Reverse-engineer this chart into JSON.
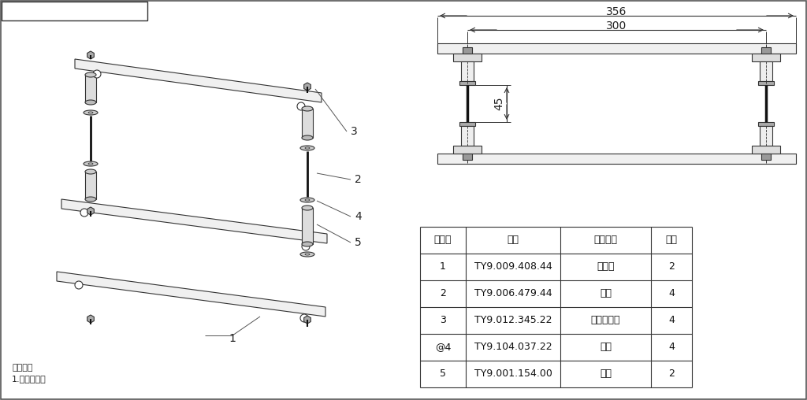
{
  "bg_color": "#ffffff",
  "line_color": "#333333",
  "table_header": [
    "项目号",
    "图号",
    "图样名称",
    "数量"
  ],
  "table_rows": [
    [
      "1",
      "TY9.009.408.44",
      "扶手板",
      "2"
    ],
    [
      "2",
      "TY9.006.479.44",
      "支架",
      "4"
    ],
    [
      "3",
      "TY9.012.345.22",
      "外六角螺栓",
      "4"
    ],
    [
      "@4",
      "TY9.104.037.22",
      "平垫",
      "4"
    ],
    [
      "5",
      "TY9.001.154.00",
      "螺杆",
      "2"
    ]
  ],
  "dim_356": "356",
  "dim_300": "300",
  "dim_45": "45",
  "assembly_line1": "装配要求",
  "assembly_line2": "1.按图装配。",
  "part_labels": [
    "1",
    "2",
    "3",
    "4",
    "5"
  ],
  "font_name": "WenQuanYi Micro Hei"
}
